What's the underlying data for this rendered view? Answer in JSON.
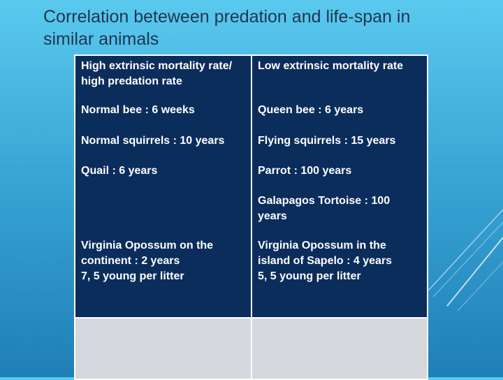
{
  "slide": {
    "title": "Correlation beteween predation and life-span in similar animals"
  },
  "table": {
    "rows": [
      [
        "High extrinsic mortality rate/ high predation rate",
        "Low extrinsic mortality rate"
      ],
      [
        "Normal bee : 6 weeks",
        "Queen bee : 6 years"
      ],
      [
        "Normal squirrels : 10 years",
        "Flying squirrels : 15 years"
      ],
      [
        "Quail : 6 years",
        "Parrot : 100 years"
      ],
      [
        "",
        "Galapagos Tortoise : 100 years"
      ],
      [
        "Virginia Opossum on the continent : 2 years\n7, 5 young per litter",
        "Virginia Opossum in the island of Sapelo  : 4 years\n5, 5 young per litter"
      ]
    ]
  },
  "colors": {
    "background_top": "#5ac9ee",
    "background_bottom": "#1f7fb8",
    "cell_fill": "#0b2d5c",
    "blank_row_fill": "#d4d7db",
    "title_text": "#1f3550"
  }
}
